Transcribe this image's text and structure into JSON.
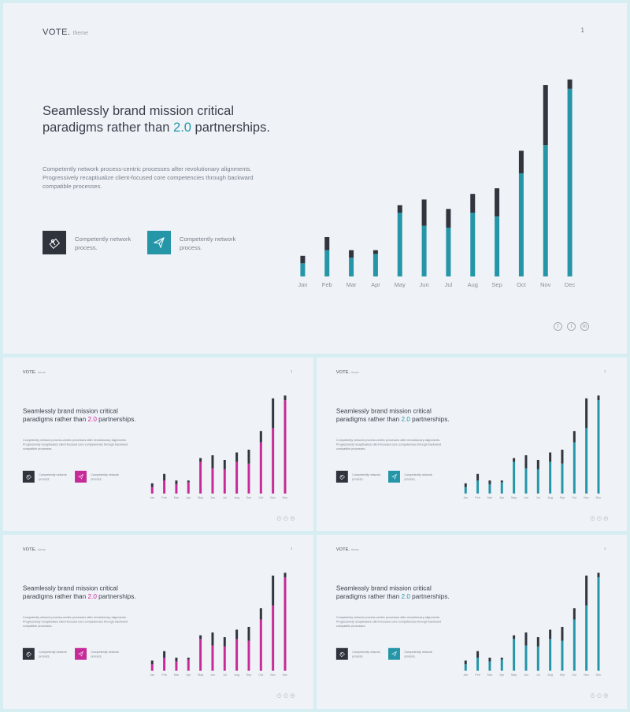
{
  "slide": {
    "logo": "VOTE.",
    "logo_sub": "theme",
    "page_number": "1",
    "headline_part1": "Seamlessly brand mission critical paradigms rather than ",
    "headline_accent": "2.0",
    "headline_part2": " partnerships.",
    "paragraph": "Competently network process-centric processes after revolutionary alignments. Progressively recaptiualize client-focused core competencies through backward compatible processes.",
    "features": [
      {
        "icon": "gift-icon",
        "text": "Competently network process."
      },
      {
        "icon": "paper-plane-icon",
        "text": "Competently network process."
      }
    ],
    "socials": [
      {
        "icon": "facebook-icon",
        "glyph": "f"
      },
      {
        "icon": "twitter-icon",
        "glyph": "t"
      },
      {
        "icon": "linkedin-icon",
        "glyph": "in"
      }
    ]
  },
  "colors": {
    "dark": "#31353e",
    "teal": "#2596a8",
    "magenta": "#c72b98",
    "text": "#3a3f4b",
    "muted": "#7a808b"
  },
  "slides": [
    {
      "id": "big",
      "accent": "#2596a8"
    },
    {
      "id": "tl",
      "accent": "#c72b98"
    },
    {
      "id": "tr",
      "accent": "#2596a8"
    },
    {
      "id": "bl",
      "accent": "#c72b98"
    },
    {
      "id": "br",
      "accent": "#2596a8"
    }
  ],
  "chart_data": {
    "type": "bar",
    "stacked": true,
    "categories": [
      "Jan",
      "Feb",
      "Mar",
      "Apr",
      "May",
      "Jun",
      "Jul",
      "Aug",
      "Sep",
      "Oct",
      "Nov",
      "Dec"
    ],
    "series": [
      {
        "values": [
          7,
          14,
          10,
          12,
          34,
          27,
          26,
          34,
          32,
          55,
          70,
          100
        ]
      },
      {
        "values": [
          4,
          7,
          4,
          2,
          4,
          14,
          10,
          10,
          15,
          12,
          32,
          5
        ]
      }
    ],
    "ylim": [
      0,
      110
    ],
    "grid": false
  }
}
